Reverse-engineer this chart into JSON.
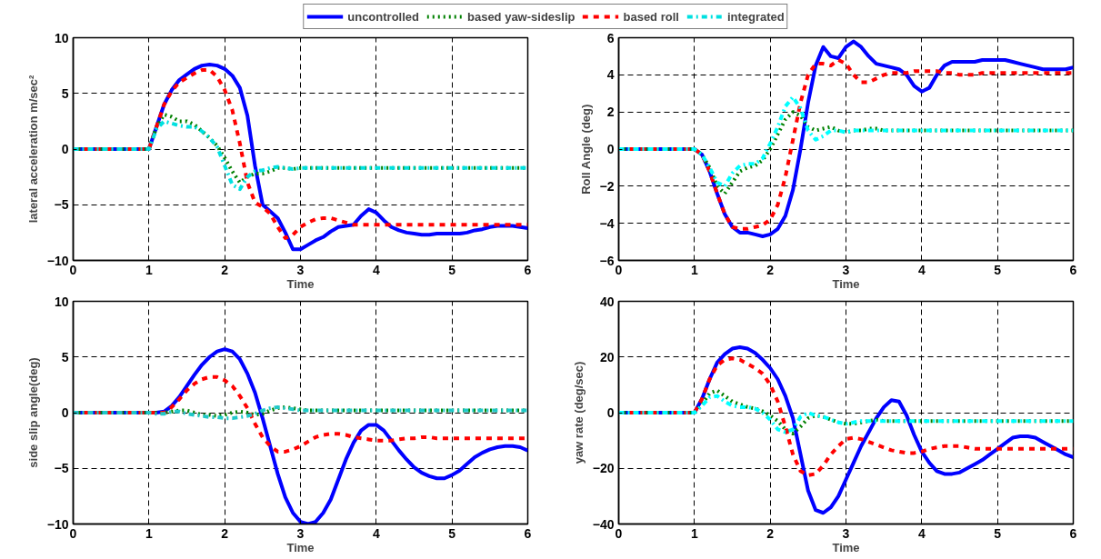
{
  "chart_data": [
    {
      "type": "line",
      "xlabel": "Time",
      "ylabel": "lateral acceleration m/sec²",
      "xlim": [
        0,
        6
      ],
      "ylim": [
        -10,
        10
      ],
      "xticks": [
        0,
        1,
        2,
        3,
        4,
        5,
        6
      ],
      "yticks": [
        -10,
        -5,
        0,
        5,
        10
      ],
      "grid": true,
      "legend": "top",
      "marker": "none",
      "x": [
        0,
        1,
        1.1,
        1.2,
        1.3,
        1.4,
        1.5,
        1.6,
        1.7,
        1.8,
        1.9,
        2.0,
        2.1,
        2.2,
        2.3,
        2.4,
        2.5,
        2.6,
        2.7,
        2.8,
        2.9,
        3.0,
        3.1,
        3.2,
        3.3,
        3.4,
        3.5,
        3.6,
        3.7,
        3.8,
        3.9,
        4.0,
        4.1,
        4.2,
        4.3,
        4.4,
        4.5,
        4.6,
        4.7,
        4.8,
        4.9,
        5.0,
        5.1,
        5.2,
        5.3,
        5.4,
        5.5,
        5.6,
        5.7,
        5.8,
        5.9,
        6.0
      ],
      "series": [
        {
          "name": "uncontrolled",
          "color": "#0000ff",
          "line_style": "solid",
          "values": [
            0,
            0,
            2.0,
            4.0,
            5.3,
            6.2,
            6.7,
            7.2,
            7.5,
            7.6,
            7.5,
            7.2,
            6.6,
            5.5,
            3.0,
            -1.5,
            -5.0,
            -5.6,
            -6.2,
            -7.5,
            -9.0,
            -9.0,
            -8.6,
            -8.2,
            -7.9,
            -7.4,
            -7.0,
            -6.9,
            -6.8,
            -6.0,
            -5.4,
            -5.7,
            -6.4,
            -7.0,
            -7.3,
            -7.5,
            -7.6,
            -7.7,
            -7.7,
            -7.6,
            -7.6,
            -7.6,
            -7.6,
            -7.5,
            -7.3,
            -7.2,
            -7.0,
            -6.9,
            -6.9,
            -6.9,
            -7.0,
            -7.1
          ]
        },
        {
          "name": "based yaw-sideslip",
          "color": "#008000",
          "line_style": "dotted",
          "values": [
            0,
            0,
            2.0,
            3.1,
            2.9,
            2.5,
            2.5,
            2.2,
            1.6,
            1.0,
            0.3,
            -0.8,
            -2.0,
            -3.0,
            -2.5,
            -2.2,
            -2.2,
            -2.0,
            -1.7,
            -1.7,
            -1.8,
            -1.7,
            -1.7,
            -1.7,
            -1.7,
            -1.7,
            -1.7,
            -1.7,
            -1.7,
            -1.7,
            -1.7,
            -1.7,
            -1.7,
            -1.7,
            -1.7,
            -1.7,
            -1.7,
            -1.7,
            -1.7,
            -1.7,
            -1.7,
            -1.7,
            -1.7,
            -1.7,
            -1.7,
            -1.7,
            -1.7,
            -1.7,
            -1.7,
            -1.7,
            -1.7,
            -1.7
          ]
        },
        {
          "name": "based roll",
          "color": "#ff0000",
          "line_style": "dashed",
          "values": [
            0,
            0,
            2.0,
            4.0,
            5.2,
            6.0,
            6.4,
            6.8,
            7.1,
            7.1,
            6.5,
            5.3,
            3.5,
            0.5,
            -3.0,
            -4.8,
            -5.2,
            -5.8,
            -7.0,
            -8.0,
            -7.7,
            -7.0,
            -6.6,
            -6.3,
            -6.2,
            -6.2,
            -6.4,
            -6.6,
            -6.8,
            -6.8,
            -6.8,
            -6.8,
            -6.8,
            -6.8,
            -6.8,
            -6.8,
            -6.8,
            -6.8,
            -6.8,
            -6.8,
            -6.8,
            -6.8,
            -6.8,
            -6.8,
            -6.8,
            -6.8,
            -6.8,
            -6.8,
            -6.8,
            -6.8,
            -6.8,
            -6.8
          ]
        },
        {
          "name": "integrated",
          "color": "#00e0e0",
          "line_style": "dashdot",
          "values": [
            0,
            0,
            1.8,
            2.5,
            2.3,
            2.1,
            2.0,
            2.0,
            1.6,
            1.0,
            0.2,
            -1.5,
            -3.2,
            -3.6,
            -2.5,
            -2.0,
            -1.9,
            -1.7,
            -1.6,
            -1.7,
            -1.8,
            -1.7,
            -1.7,
            -1.7,
            -1.7,
            -1.7,
            -1.7,
            -1.7,
            -1.7,
            -1.7,
            -1.7,
            -1.7,
            -1.7,
            -1.7,
            -1.7,
            -1.7,
            -1.7,
            -1.7,
            -1.7,
            -1.7,
            -1.7,
            -1.7,
            -1.7,
            -1.7,
            -1.7,
            -1.7,
            -1.7,
            -1.7,
            -1.7,
            -1.7,
            -1.7,
            -1.7
          ]
        }
      ]
    },
    {
      "type": "line",
      "xlabel": "Time",
      "ylabel": "Roll Angle (deg)",
      "xlim": [
        0,
        6
      ],
      "ylim": [
        -6,
        6
      ],
      "xticks": [
        0,
        1,
        2,
        3,
        4,
        5,
        6
      ],
      "yticks": [
        -6,
        -4,
        -2,
        0,
        2,
        4,
        6
      ],
      "grid": true,
      "marker": "none",
      "x": [
        0,
        1,
        1.1,
        1.2,
        1.3,
        1.4,
        1.5,
        1.6,
        1.7,
        1.8,
        1.9,
        2.0,
        2.1,
        2.2,
        2.3,
        2.4,
        2.5,
        2.6,
        2.7,
        2.8,
        2.9,
        3.0,
        3.1,
        3.2,
        3.3,
        3.4,
        3.5,
        3.6,
        3.7,
        3.8,
        3.9,
        4.0,
        4.1,
        4.2,
        4.3,
        4.4,
        4.5,
        4.6,
        4.7,
        4.8,
        4.9,
        5.0,
        5.1,
        5.2,
        5.3,
        5.4,
        5.5,
        5.6,
        5.7,
        5.8,
        5.9,
        6.0
      ],
      "series": [
        {
          "color": "#0000ff",
          "line_style": "solid",
          "values": [
            0,
            0,
            -0.3,
            -1.2,
            -2.4,
            -3.5,
            -4.2,
            -4.5,
            -4.5,
            -4.6,
            -4.7,
            -4.6,
            -4.3,
            -3.6,
            -2.2,
            0.0,
            2.5,
            4.5,
            5.5,
            5.0,
            4.9,
            5.5,
            5.8,
            5.5,
            5.0,
            4.6,
            4.5,
            4.4,
            4.3,
            4.0,
            3.4,
            3.1,
            3.3,
            4.0,
            4.5,
            4.7,
            4.7,
            4.7,
            4.7,
            4.8,
            4.8,
            4.8,
            4.8,
            4.7,
            4.6,
            4.5,
            4.4,
            4.3,
            4.3,
            4.3,
            4.3,
            4.4
          ]
        },
        {
          "color": "#008000",
          "line_style": "dotted",
          "values": [
            0,
            0,
            -0.3,
            -1.0,
            -2.0,
            -2.4,
            -1.8,
            -1.2,
            -1.0,
            -0.9,
            -0.6,
            0.0,
            0.8,
            1.6,
            2.0,
            1.8,
            1.2,
            1.0,
            1.1,
            1.2,
            1.0,
            0.9,
            1.0,
            1.0,
            1.1,
            1.1,
            1.0,
            1.0,
            1.0,
            1.0,
            1.0,
            1.0,
            1.0,
            1.0,
            1.0,
            1.0,
            1.0,
            1.0,
            1.0,
            1.0,
            1.0,
            1.0,
            1.0,
            1.0,
            1.0,
            1.0,
            1.0,
            1.0,
            1.0,
            1.0,
            1.0,
            1.0
          ]
        },
        {
          "color": "#ff0000",
          "line_style": "dashed",
          "values": [
            0,
            0,
            -0.3,
            -1.2,
            -2.4,
            -3.5,
            -4.2,
            -4.3,
            -4.3,
            -4.2,
            -4.1,
            -3.8,
            -3.0,
            -1.5,
            0.5,
            2.5,
            4.0,
            4.6,
            4.6,
            4.5,
            4.8,
            4.6,
            4.0,
            3.6,
            3.6,
            3.8,
            4.0,
            4.1,
            4.1,
            4.1,
            4.2,
            4.2,
            4.2,
            4.2,
            4.1,
            4.1,
            4.0,
            4.0,
            4.0,
            4.1,
            4.1,
            4.1,
            4.1,
            4.1,
            4.1,
            4.1,
            4.1,
            4.1,
            4.1,
            4.1,
            4.1,
            4.1
          ]
        },
        {
          "color": "#00ffff",
          "line_style": "dashdot",
          "values": [
            0,
            0,
            -0.3,
            -1.0,
            -1.8,
            -2.0,
            -1.3,
            -0.9,
            -0.8,
            -0.8,
            -0.5,
            0.3,
            1.2,
            2.3,
            2.8,
            2.2,
            1.0,
            0.5,
            0.7,
            1.0,
            1.0,
            0.9,
            1.0,
            1.0,
            1.0,
            1.0,
            1.0,
            1.0,
            1.0,
            1.0,
            1.0,
            1.0,
            1.0,
            1.0,
            1.0,
            1.0,
            1.0,
            1.0,
            1.0,
            1.0,
            1.0,
            1.0,
            1.0,
            1.0,
            1.0,
            1.0,
            1.0,
            1.0,
            1.0,
            1.0,
            1.0,
            1.0
          ]
        }
      ]
    },
    {
      "type": "line",
      "xlabel": "Time",
      "ylabel": "side slip angle(deg)",
      "xlim": [
        0,
        6
      ],
      "ylim": [
        -10,
        10
      ],
      "xticks": [
        0,
        1,
        2,
        3,
        4,
        5,
        6
      ],
      "yticks": [
        -10,
        -5,
        0,
        5,
        10
      ],
      "grid": true,
      "marker": "none",
      "x": [
        0,
        1,
        1.1,
        1.2,
        1.3,
        1.4,
        1.5,
        1.6,
        1.7,
        1.8,
        1.9,
        2.0,
        2.1,
        2.2,
        2.3,
        2.4,
        2.5,
        2.6,
        2.7,
        2.8,
        2.9,
        3.0,
        3.1,
        3.2,
        3.3,
        3.4,
        3.5,
        3.6,
        3.7,
        3.8,
        3.9,
        4.0,
        4.1,
        4.2,
        4.3,
        4.4,
        4.5,
        4.6,
        4.7,
        4.8,
        4.9,
        5.0,
        5.1,
        5.2,
        5.3,
        5.4,
        5.5,
        5.6,
        5.7,
        5.8,
        5.9,
        6.0
      ],
      "series": [
        {
          "color": "#0000ff",
          "line_style": "solid",
          "values": [
            0,
            0,
            0.0,
            0.1,
            0.6,
            1.4,
            2.4,
            3.4,
            4.3,
            5.0,
            5.5,
            5.7,
            5.5,
            4.8,
            3.5,
            1.8,
            -0.5,
            -3.0,
            -5.5,
            -7.6,
            -9.0,
            -9.8,
            -10.0,
            -9.8,
            -9.0,
            -7.8,
            -6.0,
            -4.2,
            -2.7,
            -1.6,
            -1.1,
            -1.1,
            -1.6,
            -2.5,
            -3.4,
            -4.2,
            -4.9,
            -5.4,
            -5.7,
            -5.9,
            -5.9,
            -5.6,
            -5.2,
            -4.6,
            -4.0,
            -3.6,
            -3.3,
            -3.1,
            -3.0,
            -3.0,
            -3.1,
            -3.4
          ]
        },
        {
          "color": "#008000",
          "line_style": "dotted",
          "values": [
            0,
            0,
            0.0,
            0.0,
            0.1,
            0.2,
            0.2,
            0.0,
            -0.2,
            -0.2,
            -0.3,
            -0.2,
            0.0,
            0.1,
            0.0,
            -0.2,
            -0.1,
            0.2,
            0.4,
            0.5,
            0.4,
            0.3,
            0.2,
            0.2,
            0.2,
            0.2,
            0.2,
            0.2,
            0.2,
            0.2,
            0.2,
            0.2,
            0.2,
            0.2,
            0.2,
            0.2,
            0.2,
            0.2,
            0.2,
            0.2,
            0.2,
            0.2,
            0.2,
            0.2,
            0.2,
            0.2,
            0.2,
            0.2,
            0.2,
            0.2,
            0.2,
            0.2
          ]
        },
        {
          "color": "#ff0000",
          "line_style": "dashed",
          "values": [
            0,
            0,
            0.0,
            0.0,
            0.5,
            1.2,
            2.0,
            2.6,
            3.0,
            3.2,
            3.2,
            2.9,
            2.4,
            1.5,
            0.4,
            -1.0,
            -2.2,
            -3.0,
            -3.5,
            -3.5,
            -3.3,
            -3.0,
            -2.6,
            -2.2,
            -2.0,
            -1.9,
            -1.9,
            -2.0,
            -2.2,
            -2.3,
            -2.4,
            -2.5,
            -2.5,
            -2.5,
            -2.4,
            -2.3,
            -2.3,
            -2.2,
            -2.2,
            -2.3,
            -2.3,
            -2.3,
            -2.3,
            -2.3,
            -2.3,
            -2.3,
            -2.3,
            -2.3,
            -2.3,
            -2.3,
            -2.3,
            -2.3
          ]
        },
        {
          "color": "#20c8c8",
          "line_style": "dashdot",
          "values": [
            0,
            0,
            -0.1,
            -0.1,
            0.1,
            0.1,
            -0.1,
            -0.2,
            -0.3,
            -0.4,
            -0.4,
            -0.5,
            -0.5,
            -0.4,
            -0.3,
            -0.1,
            0.2,
            0.4,
            0.5,
            0.4,
            0.3,
            0.2,
            0.2,
            0.2,
            0.2,
            0.2,
            0.2,
            0.2,
            0.2,
            0.2,
            0.2,
            0.2,
            0.2,
            0.2,
            0.2,
            0.2,
            0.2,
            0.2,
            0.2,
            0.2,
            0.2,
            0.2,
            0.2,
            0.2,
            0.2,
            0.2,
            0.2,
            0.2,
            0.2,
            0.2,
            0.2,
            0.2
          ]
        }
      ]
    },
    {
      "type": "line",
      "xlabel": "Time",
      "ylabel": "yaw rate (deg/sec)",
      "xlim": [
        0,
        6
      ],
      "ylim": [
        -40,
        40
      ],
      "xticks": [
        0,
        1,
        2,
        3,
        4,
        5,
        6
      ],
      "yticks": [
        -40,
        -20,
        0,
        20,
        40
      ],
      "grid": true,
      "marker": "none",
      "x": [
        0,
        1,
        1.1,
        1.2,
        1.3,
        1.4,
        1.5,
        1.6,
        1.7,
        1.8,
        1.9,
        2.0,
        2.1,
        2.2,
        2.3,
        2.4,
        2.5,
        2.6,
        2.7,
        2.8,
        2.9,
        3.0,
        3.1,
        3.2,
        3.3,
        3.4,
        3.5,
        3.6,
        3.7,
        3.8,
        3.9,
        4.0,
        4.1,
        4.2,
        4.3,
        4.4,
        4.5,
        4.6,
        4.7,
        4.8,
        4.9,
        5.0,
        5.1,
        5.2,
        5.3,
        5.4,
        5.5,
        5.6,
        5.7,
        5.8,
        5.9,
        6.0
      ],
      "series": [
        {
          "color": "#0000ff",
          "line_style": "solid",
          "values": [
            0,
            0,
            5,
            12,
            18,
            21,
            23,
            23.5,
            23,
            21.5,
            19,
            16,
            12,
            6,
            -2,
            -15,
            -28,
            -35,
            -36,
            -34,
            -30,
            -24,
            -18,
            -12,
            -7,
            -2,
            2,
            4.5,
            4,
            -1,
            -8,
            -14,
            -18,
            -21,
            -22,
            -22,
            -21.5,
            -20,
            -18.5,
            -17,
            -15,
            -13,
            -11,
            -9,
            -8.5,
            -8.5,
            -9,
            -10.5,
            -12,
            -13.5,
            -15,
            -16
          ]
        },
        {
          "color": "#008000",
          "line_style": "dotted",
          "values": [
            0,
            0,
            3,
            7,
            8,
            6,
            4,
            3,
            2,
            1.5,
            0.5,
            -1,
            -3,
            -6,
            -7.5,
            -5,
            -2,
            -1,
            -1.5,
            -2.5,
            -3.5,
            -4,
            -4,
            -3.5,
            -3,
            -2.5,
            -3,
            -3,
            -3,
            -3,
            -3,
            -3,
            -3,
            -3,
            -3,
            -3,
            -3,
            -3,
            -3,
            -3,
            -3,
            -3,
            -3,
            -3,
            -3,
            -3,
            -3,
            -3,
            -3,
            -3,
            -3,
            -3
          ]
        },
        {
          "color": "#ff0000",
          "line_style": "dashed",
          "values": [
            0,
            0,
            5,
            12,
            17,
            19,
            19.5,
            19,
            17.5,
            16,
            14,
            10,
            4,
            -5,
            -15,
            -21,
            -22.5,
            -22,
            -19,
            -15,
            -12,
            -9.5,
            -9,
            -9.5,
            -10.5,
            -11.5,
            -12.5,
            -13.5,
            -14,
            -14.5,
            -14.5,
            -14,
            -13,
            -12.5,
            -12,
            -12,
            -12,
            -12.5,
            -13,
            -13,
            -13,
            -13,
            -13,
            -13,
            -13,
            -13,
            -13,
            -13,
            -13,
            -13,
            -13,
            -13
          ]
        },
        {
          "color": "#00ffff",
          "line_style": "dashdot",
          "values": [
            0,
            0,
            2.5,
            5.5,
            6,
            4,
            2.5,
            2,
            2,
            1.5,
            0,
            -2.5,
            -6,
            -7,
            -6,
            -1.5,
            0,
            -1,
            -1.5,
            -2.5,
            -3.5,
            -4,
            -3.5,
            -3,
            -3,
            -3,
            -3,
            -3,
            -3,
            -3,
            -3,
            -3,
            -3,
            -3,
            -3,
            -3,
            -3,
            -3,
            -3,
            -3,
            -3,
            -3,
            -3,
            -3,
            -3,
            -3,
            -3,
            -3,
            -3,
            -3,
            -3,
            -3
          ]
        }
      ]
    }
  ]
}
